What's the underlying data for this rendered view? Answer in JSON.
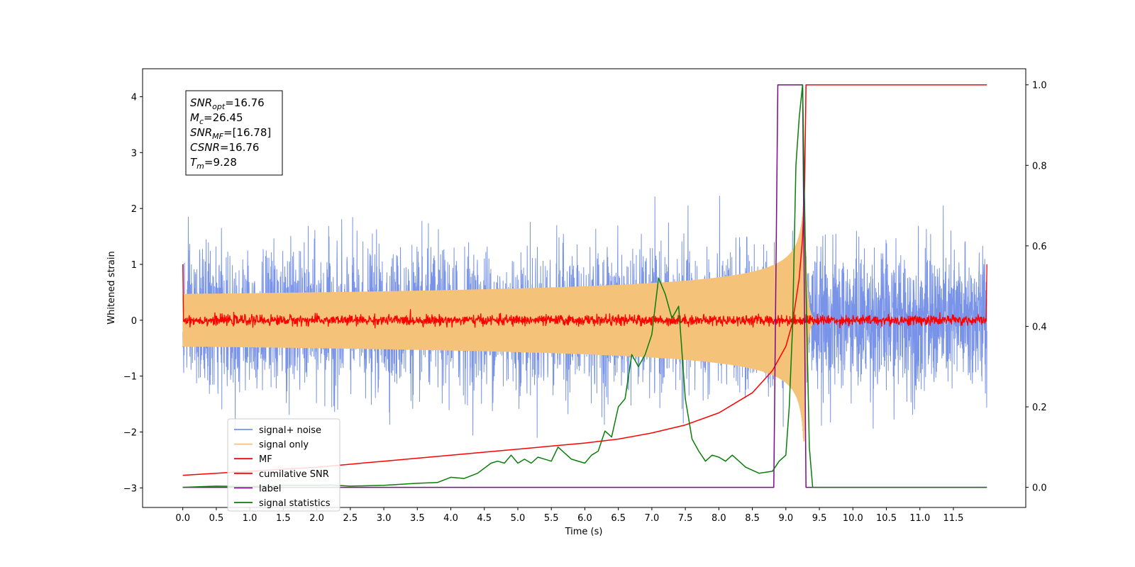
{
  "chart_data": {
    "type": "line",
    "xlabel": "Time (s)",
    "ylabel": "Whitened strain",
    "xlim": [
      -0.6,
      12.58
    ],
    "ylim": [
      -3.35,
      4.5
    ],
    "y2lim": [
      -0.05,
      1.04
    ],
    "x_ticks": [
      "0.0",
      "0.5",
      "1.0",
      "1.5",
      "2.0",
      "2.5",
      "3.0",
      "3.5",
      "4.0",
      "4.5",
      "5.0",
      "5.5",
      "6.0",
      "6.5",
      "7.0",
      "7.5",
      "8.0",
      "8.5",
      "9.0",
      "9.5",
      "10.0",
      "10.5",
      "11.0",
      "11.5"
    ],
    "y_ticks": [
      "4",
      "3",
      "2",
      "1",
      "0",
      "−1",
      "−2",
      "−3"
    ],
    "y2_ticks": [
      "1.0",
      "0.8",
      "0.6",
      "0.4",
      "0.2",
      "0.0"
    ],
    "legend_position": "lower-left",
    "annotation": [
      {
        "main": "SNR",
        "sub": "opt",
        "rest": "=16.76"
      },
      {
        "main": "M",
        "sub": "c",
        "rest": "=26.45"
      },
      {
        "main": "SNR",
        "sub": "MF",
        "rest": "=[16.78]"
      },
      {
        "main": "CSNR",
        "sub": "",
        "rest": "=16.76"
      },
      {
        "main": "T",
        "sub": "m",
        "rest": "=9.28"
      }
    ],
    "series": [
      {
        "name": "signal+ noise",
        "color": "#7893e8",
        "axis": "left",
        "kind": "noise",
        "amplitude_sd": 0.62,
        "max_abs": 2.55,
        "x_range": [
          0.0,
          12.0
        ]
      },
      {
        "name": "signal only",
        "color": "#f5c27a",
        "axis": "left",
        "kind": "chirp",
        "merger_time": 9.28,
        "peak_amplitude": 2.4
      },
      {
        "name": "MF",
        "color": "#ff0000",
        "axis": "left",
        "kind": "mf",
        "baseline": 0.0,
        "noise_sd": 0.045,
        "edge_value": 1.0
      },
      {
        "name": "cumilative SNR",
        "color": "#ff0000",
        "axis": "right",
        "x": [
          0.0,
          1.0,
          2.0,
          3.0,
          4.0,
          5.0,
          6.0,
          6.5,
          7.0,
          7.5,
          8.0,
          8.5,
          8.8,
          9.0,
          9.1,
          9.2,
          9.25,
          9.28,
          9.3,
          12.0
        ],
        "values": [
          0.03,
          0.04,
          0.05,
          0.065,
          0.08,
          0.095,
          0.11,
          0.12,
          0.135,
          0.155,
          0.185,
          0.235,
          0.29,
          0.35,
          0.41,
          0.52,
          0.62,
          0.75,
          1.0,
          1.0
        ]
      },
      {
        "name": "label",
        "color": "#7b0a8c",
        "axis": "right",
        "x": [
          0.0,
          8.82,
          8.88,
          9.25,
          9.3,
          12.0
        ],
        "values": [
          0.0,
          0.0,
          1.0,
          1.0,
          0.0,
          0.0
        ]
      },
      {
        "name": "signal statistics",
        "color": "#0a7d0a",
        "axis": "right",
        "x": [
          0.0,
          0.5,
          1.0,
          1.5,
          2.0,
          2.2,
          2.5,
          3.0,
          3.5,
          3.8,
          4.0,
          4.2,
          4.4,
          4.6,
          4.7,
          4.8,
          4.9,
          5.0,
          5.1,
          5.2,
          5.3,
          5.5,
          5.6,
          5.8,
          6.0,
          6.1,
          6.2,
          6.3,
          6.4,
          6.5,
          6.6,
          6.7,
          6.8,
          6.9,
          7.0,
          7.1,
          7.2,
          7.3,
          7.4,
          7.5,
          7.6,
          7.7,
          7.8,
          7.9,
          8.0,
          8.1,
          8.2,
          8.4,
          8.6,
          8.8,
          8.9,
          9.0,
          9.05,
          9.1,
          9.15,
          9.2,
          9.25,
          9.3,
          9.35,
          9.4,
          12.0
        ],
        "values": [
          0.0,
          0.003,
          0.002,
          0.005,
          0.005,
          0.006,
          0.003,
          0.005,
          0.01,
          0.012,
          0.025,
          0.022,
          0.035,
          0.06,
          0.065,
          0.06,
          0.08,
          0.06,
          0.07,
          0.06,
          0.075,
          0.065,
          0.1,
          0.07,
          0.06,
          0.08,
          0.09,
          0.14,
          0.125,
          0.2,
          0.22,
          0.33,
          0.3,
          0.33,
          0.38,
          0.52,
          0.48,
          0.42,
          0.45,
          0.22,
          0.12,
          0.09,
          0.065,
          0.08,
          0.075,
          0.065,
          0.08,
          0.05,
          0.035,
          0.04,
          0.065,
          0.08,
          0.2,
          0.4,
          0.8,
          0.92,
          1.0,
          0.5,
          0.1,
          0.0,
          0.0
        ]
      }
    ]
  }
}
